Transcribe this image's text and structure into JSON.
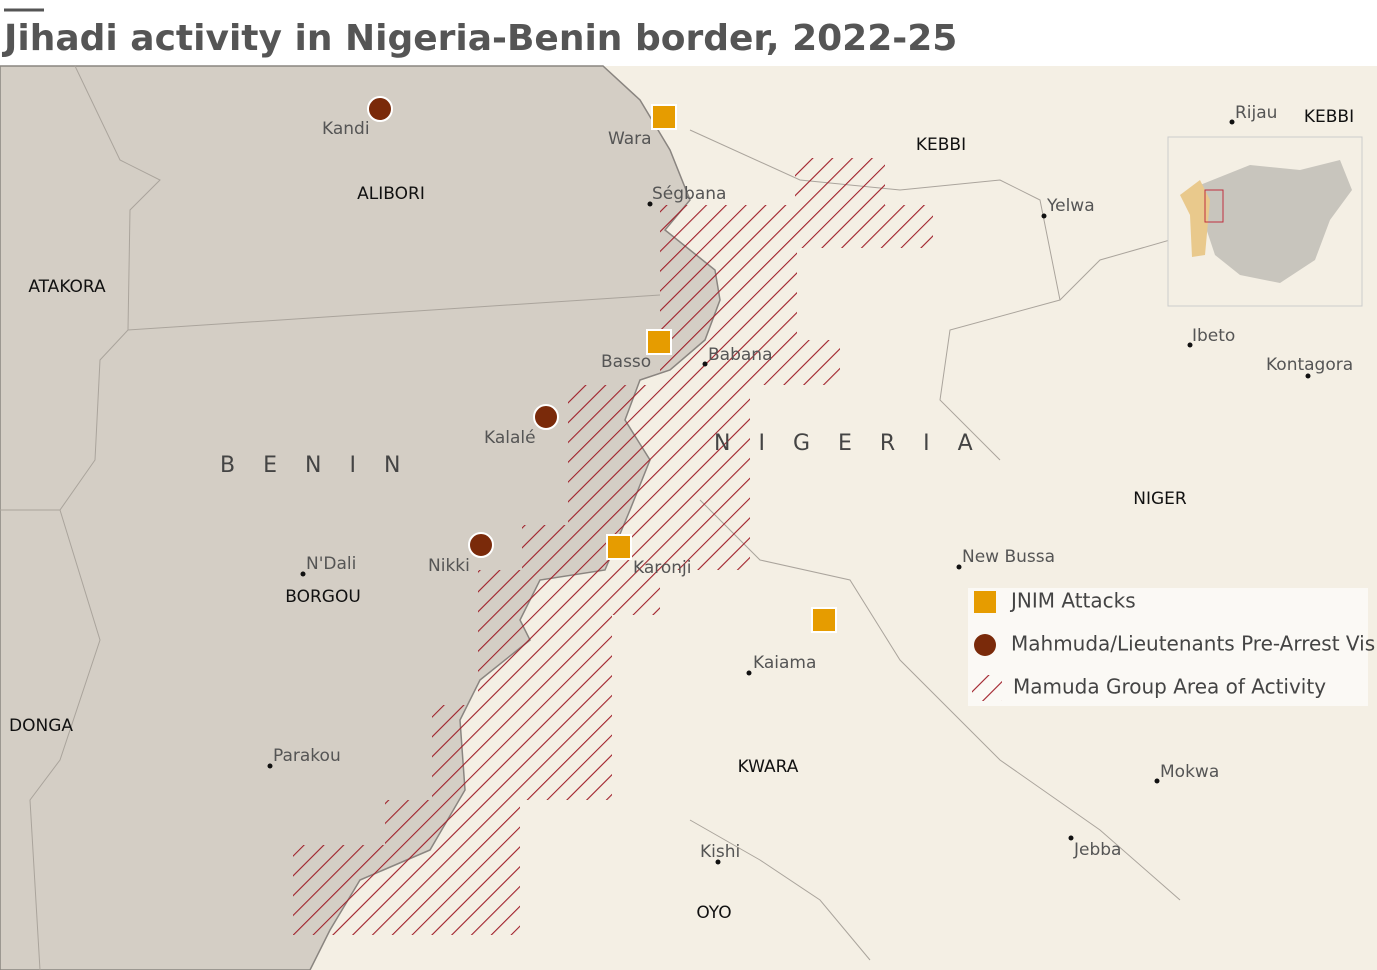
{
  "title": "Jihadi activity in Nigeria-Benin border, 2022-25",
  "countries": [
    "BENIN",
    "NIGERIA"
  ],
  "regions": [
    "ALIBORI",
    "ATAKORA",
    "BORGOU",
    "DONGA",
    "KEBBI",
    "KEBBI",
    "NIGER",
    "KWARA",
    "OYO"
  ],
  "places": [
    "Kandi",
    "Wara",
    "Ségbana",
    "Basso",
    "Babana",
    "Kalalé",
    "Nikki",
    "N'Dali",
    "Karonji",
    "Parakou",
    "Kaiama",
    "Kishi",
    "New Bussa",
    "Yelwa",
    "Rijau",
    "Ibeto",
    "Kontagora",
    "Mokwa",
    "Jebba"
  ],
  "legend": [
    "JNIM Attacks",
    "Mahmuda/Lieutenants Pre-Arrest Visit",
    "Mamuda Group Area of Activity"
  ]
}
